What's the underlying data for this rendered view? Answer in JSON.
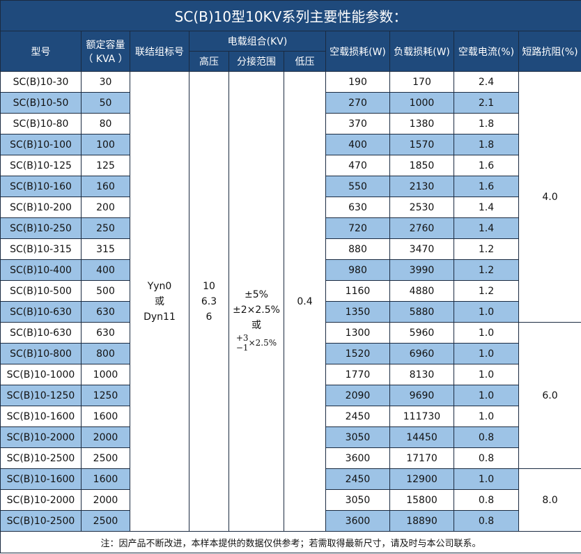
{
  "title": "SC(B)10型10KV系列主要性能参数：",
  "headers": {
    "model": "型号",
    "capacity_line1": "额定容量",
    "capacity_line2": "（ KVA ）",
    "connection": "联结组标号",
    "voltage_group": "电载组合(KV)",
    "high_voltage": "高压",
    "tap_range": "分接范围",
    "low_voltage": "低压",
    "no_load_loss": "空载损耗(W)",
    "load_loss": "负载损耗(W)",
    "no_load_current": "空载电流(%)",
    "impedance": "短路抗阻(%)"
  },
  "merged": {
    "connection": [
      "Yyn0",
      "或",
      "Dyn11"
    ],
    "high_voltage": [
      "10",
      "6.3",
      "6"
    ],
    "tap_range": [
      "±5%",
      "±2×2.5%",
      "或"
    ],
    "tap_frac_top": "+3",
    "tap_frac_bottom": "−1",
    "tap_frac_suffix": "×2.5%",
    "low_voltage": "0.4"
  },
  "impedance_groups": [
    {
      "value": "4.0",
      "rows": 12
    },
    {
      "value": "6.0",
      "rows": 7
    },
    {
      "value": "8.0",
      "rows": 3
    }
  ],
  "rows": [
    [
      "SC(B)10-30",
      "30",
      "190",
      "170",
      "2.4"
    ],
    [
      "SC(B)10-50",
      "50",
      "270",
      "1000",
      "2.1"
    ],
    [
      "SC(B)10-80",
      "80",
      "370",
      "1380",
      "1.8"
    ],
    [
      "SC(B)10-100",
      "100",
      "400",
      "1570",
      "1.8"
    ],
    [
      "SC(B)10-125",
      "125",
      "470",
      "1850",
      "1.6"
    ],
    [
      "SC(B)10-160",
      "160",
      "550",
      "2130",
      "1.6"
    ],
    [
      "SC(B)10-200",
      "200",
      "630",
      "2530",
      "1.4"
    ],
    [
      "SC(B)10-250",
      "250",
      "720",
      "2760",
      "1.4"
    ],
    [
      "SC(B)10-315",
      "315",
      "880",
      "3470",
      "1.2"
    ],
    [
      "SC(B)10-400",
      "400",
      "980",
      "3990",
      "1.2"
    ],
    [
      "SC(B)10-500",
      "500",
      "1160",
      "4880",
      "1.2"
    ],
    [
      "SC(B)10-630",
      "630",
      "1350",
      "5880",
      "1.0"
    ],
    [
      "SC(B)10-630",
      "630",
      "1300",
      "5960",
      "1.0"
    ],
    [
      "SC(B)10-800",
      "800",
      "1520",
      "6960",
      "1.0"
    ],
    [
      "SC(B)10-1000",
      "1000",
      "1770",
      "8130",
      "1.0"
    ],
    [
      "SC(B)10-1250",
      "1250",
      "2090",
      "9690",
      "1.0"
    ],
    [
      "SC(B)10-1600",
      "1600",
      "2450",
      "111730",
      "1.0"
    ],
    [
      "SC(B)10-2000",
      "2000",
      "3050",
      "14450",
      "0.8"
    ],
    [
      "SC(B)10-2500",
      "2500",
      "3600",
      "17170",
      "0.8"
    ],
    [
      "SC(B)10-1600",
      "1600",
      "2450",
      "12900",
      "1.0"
    ],
    [
      "SC(B)10-2000",
      "2000",
      "3050",
      "15800",
      "0.8"
    ],
    [
      "SC(B)10-2500",
      "2500",
      "3600",
      "18890",
      "0.8"
    ]
  ],
  "footer": "注：因产品不断改进，本样本提供的数据仅供参考；若需取得最新尺寸，请及时与本公司联系。",
  "colors": {
    "header": "#1f4a7c",
    "row_alt": "#9dc3e6",
    "border": "#1a2a40"
  }
}
